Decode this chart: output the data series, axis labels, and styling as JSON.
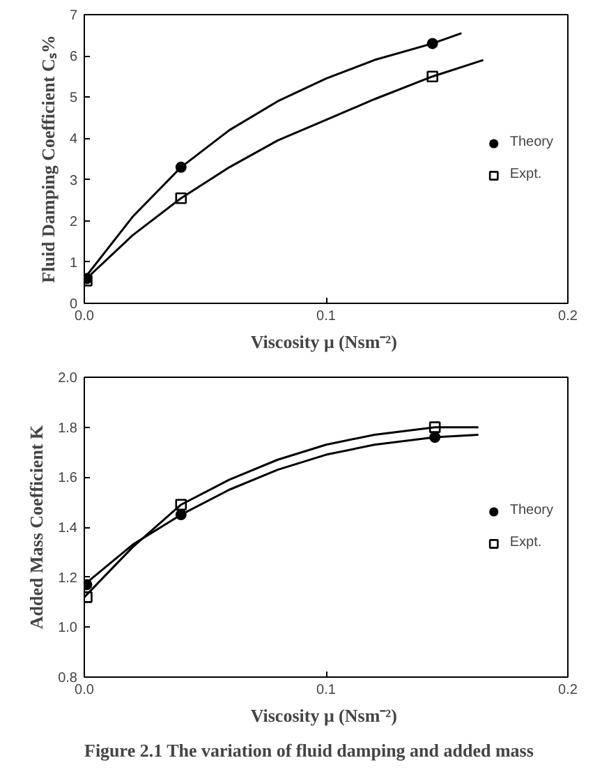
{
  "chart_data": [
    {
      "type": "scatter",
      "xlabel": "Viscosity  μ (Nsm⁻²)",
      "ylabel": "Fluid Damping Coefficient Cₛ%",
      "xlim": [
        0,
        0.2
      ],
      "ylim": [
        0,
        7
      ],
      "xticks": [
        {
          "value": 0,
          "label": "0.0"
        },
        {
          "value": 0.1,
          "label": "0.1"
        },
        {
          "value": 0.2,
          "label": "0.2"
        }
      ],
      "yticks": [
        0,
        1,
        2,
        3,
        4,
        5,
        6,
        7
      ],
      "grid": false,
      "legend": "right",
      "series": [
        {
          "name": "Theory",
          "color": "#000000",
          "marker": "circle",
          "x": [
            0.001,
            0.04,
            0.144
          ],
          "values": [
            0.6,
            3.3,
            6.3
          ]
        },
        {
          "name": "Expt.",
          "color": "#000000",
          "marker": "square",
          "x": [
            0.001,
            0.04,
            0.144
          ],
          "values": [
            0.55,
            2.55,
            5.5
          ]
        },
        {
          "type": "line",
          "color": "#000000",
          "x": [
            0,
            0.02,
            0.04,
            0.06,
            0.08,
            0.1,
            0.12,
            0.144,
            0.156
          ],
          "values": [
            0.6,
            2.1,
            3.3,
            4.2,
            4.9,
            5.45,
            5.9,
            6.3,
            6.55
          ]
        },
        {
          "type": "line",
          "color": "#000000",
          "x": [
            0,
            0.02,
            0.04,
            0.06,
            0.08,
            0.1,
            0.12,
            0.144,
            0.165
          ],
          "values": [
            0.55,
            1.65,
            2.55,
            3.3,
            3.95,
            4.45,
            4.95,
            5.5,
            5.9
          ]
        }
      ]
    },
    {
      "type": "scatter",
      "xlabel": "Viscosity  μ (Nsm⁻²)",
      "ylabel": "Added Mass Coefficient K",
      "xlim": [
        0,
        0.2
      ],
      "ylim": [
        0.8,
        2.0
      ],
      "xticks": [
        {
          "value": 0,
          "label": "0.0"
        },
        {
          "value": 0.1,
          "label": "0.1"
        },
        {
          "value": 0.2,
          "label": "0.2"
        }
      ],
      "yticks": [
        {
          "value": 0.8,
          "label": "0.8"
        },
        {
          "value": 1.0,
          "label": "1.0"
        },
        {
          "value": 1.2,
          "label": "1.2"
        },
        {
          "value": 1.4,
          "label": "1.4"
        },
        {
          "value": 1.6,
          "label": "1.6"
        },
        {
          "value": 1.8,
          "label": "1.8"
        },
        {
          "value": 2.0,
          "label": "2.0"
        }
      ],
      "grid": false,
      "legend": "right",
      "annotations": [
        "Figure 2.1   The variation of fluid damping and added mass"
      ],
      "series": [
        {
          "name": "Theory",
          "color": "#000000",
          "marker": "circle",
          "x": [
            0.001,
            0.04,
            0.145
          ],
          "values": [
            1.17,
            1.45,
            1.76
          ]
        },
        {
          "name": "Expt.",
          "color": "#000000",
          "marker": "square",
          "x": [
            0.001,
            0.04,
            0.145
          ],
          "values": [
            1.12,
            1.49,
            1.8
          ]
        },
        {
          "type": "line",
          "color": "#000000",
          "x": [
            0,
            0.02,
            0.04,
            0.06,
            0.08,
            0.1,
            0.12,
            0.145,
            0.163
          ],
          "values": [
            1.17,
            1.33,
            1.45,
            1.55,
            1.63,
            1.69,
            1.73,
            1.76,
            1.77
          ]
        },
        {
          "type": "line",
          "color": "#000000",
          "x": [
            0,
            0.02,
            0.04,
            0.06,
            0.08,
            0.1,
            0.12,
            0.145,
            0.163
          ],
          "values": [
            1.12,
            1.32,
            1.49,
            1.59,
            1.67,
            1.73,
            1.77,
            1.8,
            1.8
          ]
        }
      ]
    }
  ]
}
